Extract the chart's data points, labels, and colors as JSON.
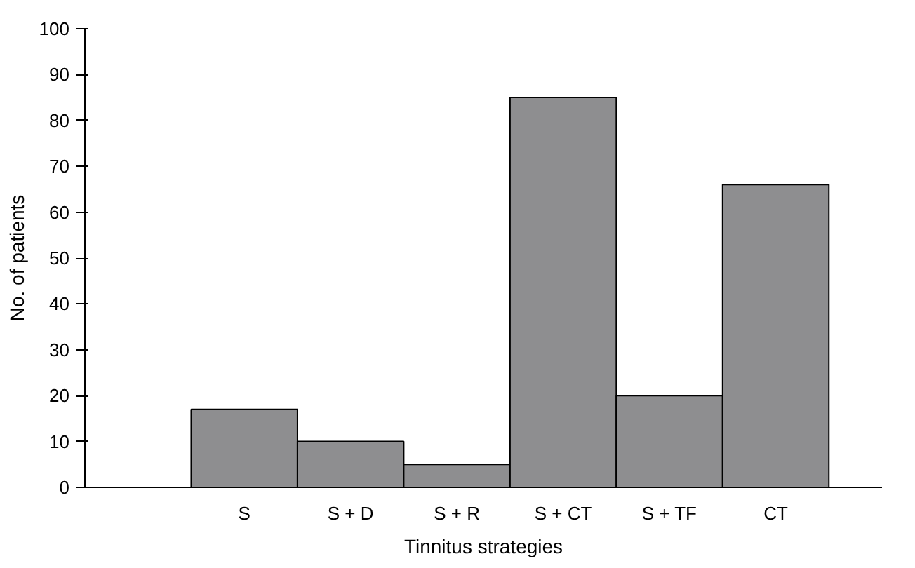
{
  "chart_data": {
    "type": "bar",
    "xlabel": "Tinnitus strategies",
    "ylabel": "No. of patients",
    "categories": [
      "S",
      "S + D",
      "S + R",
      "S + CT",
      "S + TF",
      "CT"
    ],
    "values": [
      17,
      10,
      5,
      85,
      20,
      66
    ],
    "color": "#8e8e90",
    "ylim": [
      0,
      100
    ],
    "yticks": [
      0,
      10,
      20,
      30,
      40,
      50,
      60,
      70,
      80,
      90,
      100
    ],
    "grid": false
  }
}
